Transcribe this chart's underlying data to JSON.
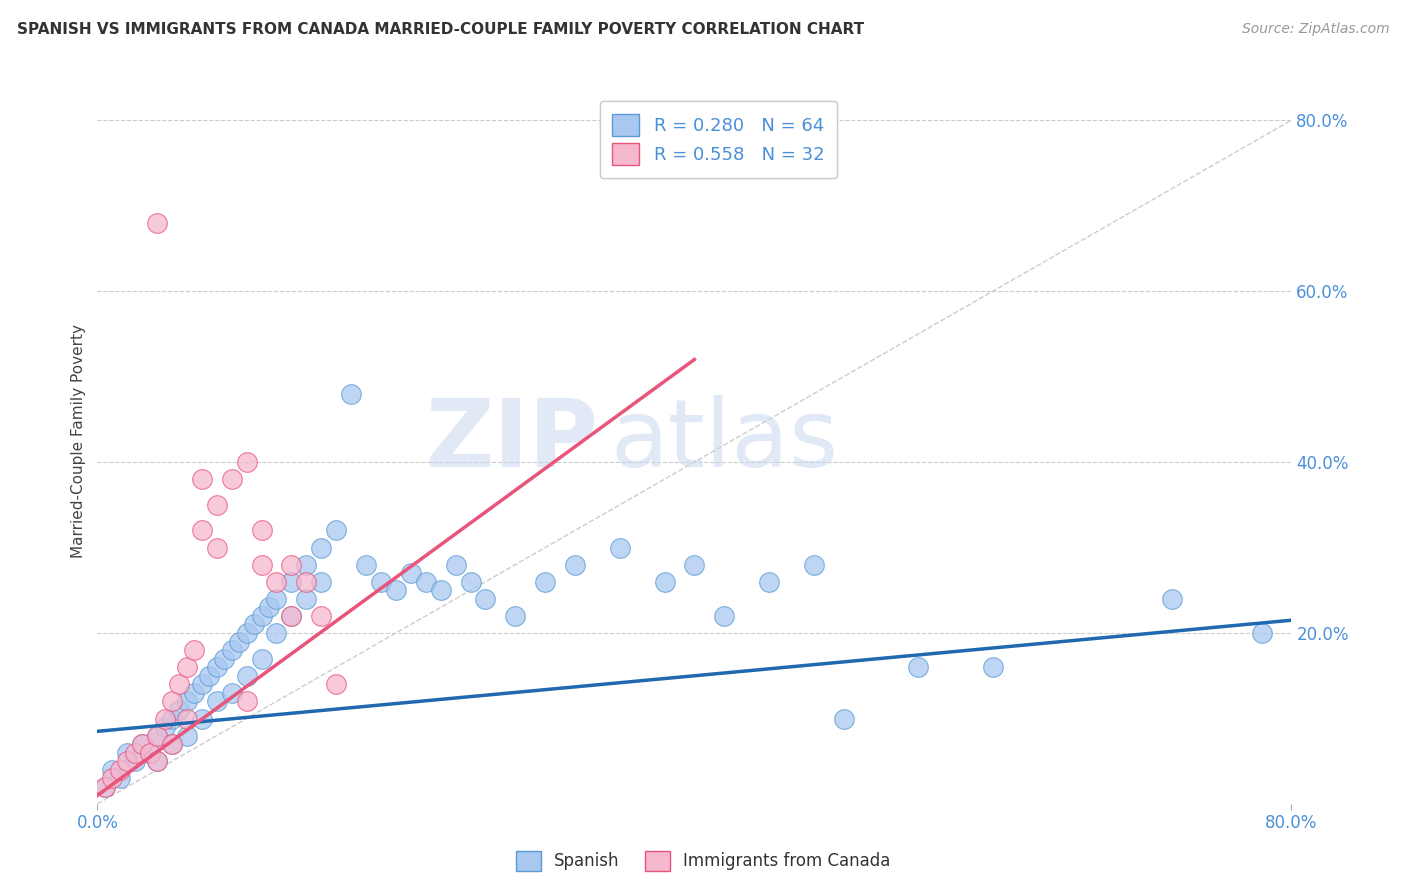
{
  "title": "SPANISH VS IMMIGRANTS FROM CANADA MARRIED-COUPLE FAMILY POVERTY CORRELATION CHART",
  "source": "Source: ZipAtlas.com",
  "ylabel": "Married-Couple Family Poverty",
  "xlim": [
    0.0,
    0.8
  ],
  "ylim": [
    0.0,
    0.85
  ],
  "ytick_labels": [
    "20.0%",
    "40.0%",
    "60.0%",
    "80.0%"
  ],
  "ytick_values": [
    0.2,
    0.4,
    0.6,
    0.8
  ],
  "watermark_zip": "ZIP",
  "watermark_atlas": "atlas",
  "legend1_r": "R = 0.280",
  "legend1_n": "N = 64",
  "legend2_r": "R = 0.558",
  "legend2_n": "N = 32",
  "legend_bottom_label1": "Spanish",
  "legend_bottom_label2": "Immigrants from Canada",
  "blue_fill": "#a8c8f0",
  "pink_fill": "#f5b8ce",
  "blue_edge": "#5b9bd5",
  "pink_edge": "#e8547a",
  "blue_line_color": "#2068b0",
  "pink_line_color": "#e8547a",
  "diag_color": "#cccccc",
  "blue_scatter": [
    [
      0.005,
      0.02
    ],
    [
      0.01,
      0.04
    ],
    [
      0.015,
      0.03
    ],
    [
      0.02,
      0.06
    ],
    [
      0.025,
      0.05
    ],
    [
      0.03,
      0.07
    ],
    [
      0.035,
      0.06
    ],
    [
      0.04,
      0.08
    ],
    [
      0.04,
      0.05
    ],
    [
      0.045,
      0.09
    ],
    [
      0.05,
      0.1
    ],
    [
      0.05,
      0.07
    ],
    [
      0.055,
      0.11
    ],
    [
      0.06,
      0.12
    ],
    [
      0.06,
      0.08
    ],
    [
      0.065,
      0.13
    ],
    [
      0.07,
      0.14
    ],
    [
      0.07,
      0.1
    ],
    [
      0.075,
      0.15
    ],
    [
      0.08,
      0.16
    ],
    [
      0.08,
      0.12
    ],
    [
      0.085,
      0.17
    ],
    [
      0.09,
      0.18
    ],
    [
      0.09,
      0.13
    ],
    [
      0.095,
      0.19
    ],
    [
      0.1,
      0.2
    ],
    [
      0.1,
      0.15
    ],
    [
      0.105,
      0.21
    ],
    [
      0.11,
      0.22
    ],
    [
      0.11,
      0.17
    ],
    [
      0.115,
      0.23
    ],
    [
      0.12,
      0.24
    ],
    [
      0.12,
      0.2
    ],
    [
      0.13,
      0.26
    ],
    [
      0.13,
      0.22
    ],
    [
      0.14,
      0.28
    ],
    [
      0.14,
      0.24
    ],
    [
      0.15,
      0.3
    ],
    [
      0.15,
      0.26
    ],
    [
      0.16,
      0.32
    ],
    [
      0.17,
      0.48
    ],
    [
      0.18,
      0.28
    ],
    [
      0.19,
      0.26
    ],
    [
      0.2,
      0.25
    ],
    [
      0.21,
      0.27
    ],
    [
      0.22,
      0.26
    ],
    [
      0.23,
      0.25
    ],
    [
      0.24,
      0.28
    ],
    [
      0.25,
      0.26
    ],
    [
      0.26,
      0.24
    ],
    [
      0.28,
      0.22
    ],
    [
      0.3,
      0.26
    ],
    [
      0.32,
      0.28
    ],
    [
      0.35,
      0.3
    ],
    [
      0.38,
      0.26
    ],
    [
      0.4,
      0.28
    ],
    [
      0.42,
      0.22
    ],
    [
      0.45,
      0.26
    ],
    [
      0.48,
      0.28
    ],
    [
      0.5,
      0.1
    ],
    [
      0.55,
      0.16
    ],
    [
      0.6,
      0.16
    ],
    [
      0.72,
      0.24
    ],
    [
      0.78,
      0.2
    ]
  ],
  "pink_scatter": [
    [
      0.005,
      0.02
    ],
    [
      0.01,
      0.03
    ],
    [
      0.015,
      0.04
    ],
    [
      0.02,
      0.05
    ],
    [
      0.025,
      0.06
    ],
    [
      0.03,
      0.07
    ],
    [
      0.035,
      0.06
    ],
    [
      0.04,
      0.08
    ],
    [
      0.04,
      0.05
    ],
    [
      0.045,
      0.1
    ],
    [
      0.05,
      0.12
    ],
    [
      0.05,
      0.07
    ],
    [
      0.055,
      0.14
    ],
    [
      0.06,
      0.16
    ],
    [
      0.06,
      0.1
    ],
    [
      0.065,
      0.18
    ],
    [
      0.07,
      0.38
    ],
    [
      0.07,
      0.32
    ],
    [
      0.08,
      0.35
    ],
    [
      0.08,
      0.3
    ],
    [
      0.09,
      0.38
    ],
    [
      0.1,
      0.4
    ],
    [
      0.1,
      0.12
    ],
    [
      0.11,
      0.32
    ],
    [
      0.11,
      0.28
    ],
    [
      0.12,
      0.26
    ],
    [
      0.13,
      0.22
    ],
    [
      0.13,
      0.28
    ],
    [
      0.14,
      0.26
    ],
    [
      0.15,
      0.22
    ],
    [
      0.04,
      0.68
    ],
    [
      0.16,
      0.14
    ]
  ],
  "blue_line": {
    "x0": 0.0,
    "x1": 0.8,
    "y0": 0.085,
    "y1": 0.215
  },
  "pink_line": {
    "x0": 0.0,
    "x1": 0.4,
    "y0": 0.01,
    "y1": 0.52
  },
  "diag_line": {
    "x0": 0.0,
    "x1": 0.8,
    "y0": 0.0,
    "y1": 0.8
  }
}
